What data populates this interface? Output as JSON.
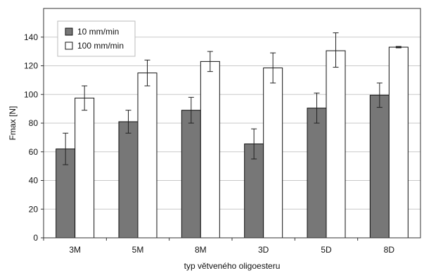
{
  "chart_data": {
    "type": "bar",
    "categories": [
      "3M",
      "5M",
      "8M",
      "3D",
      "5D",
      "8D"
    ],
    "series": [
      {
        "name": "10 mm/min",
        "values": [
          62,
          81,
          89,
          65.5,
          90.5,
          99.5
        ],
        "err_low": [
          51,
          73,
          80,
          55,
          80,
          91
        ],
        "err_high": [
          73,
          89,
          98,
          76,
          101,
          108
        ],
        "color": "#777777"
      },
      {
        "name": "100 mm/min",
        "values": [
          97.5,
          115,
          123,
          118.5,
          130.5,
          133
        ],
        "err_low": [
          89,
          106,
          116,
          108,
          119,
          132.5
        ],
        "err_high": [
          106,
          124,
          130,
          129,
          143,
          133.5
        ],
        "color": "#ffffff"
      }
    ],
    "y_ticks": [
      "0",
      "20",
      "40",
      "60",
      "80",
      "100",
      "120",
      "140"
    ],
    "ylim": [
      0,
      160
    ],
    "xlabel": "typ větveného oligoesteru",
    "ylabel": "Fmax [N]",
    "title": "",
    "grid": true,
    "legend_position": "top-left"
  }
}
